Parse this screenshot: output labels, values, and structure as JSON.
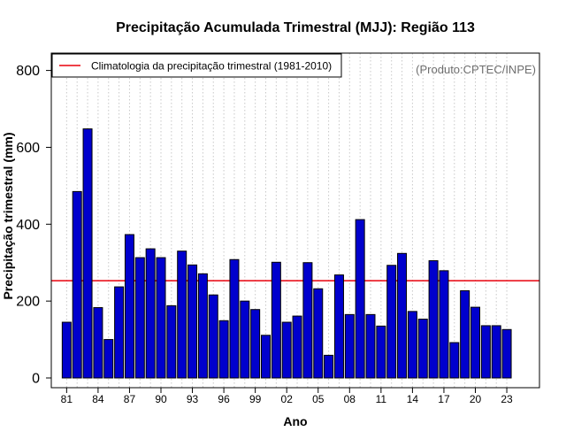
{
  "chart_data": {
    "type": "bar",
    "title": "Precipitação Acumulada Trimestral (MJJ): Região 113",
    "xlabel": "Ano",
    "ylabel": "Precipitação trimestral (mm)",
    "source_note": "(Produto:CPTEC/INPE)",
    "ylim": [
      0,
      850
    ],
    "yticks": [
      0,
      200,
      400,
      600,
      800
    ],
    "x_tick_labels": [
      "81",
      "84",
      "87",
      "90",
      "93",
      "96",
      "99",
      "02",
      "05",
      "08",
      "11",
      "14",
      "17",
      "20",
      "23"
    ],
    "categories": [
      "1981",
      "1982",
      "1983",
      "1984",
      "1985",
      "1986",
      "1987",
      "1988",
      "1989",
      "1990",
      "1991",
      "1992",
      "1993",
      "1994",
      "1995",
      "1996",
      "1997",
      "1998",
      "1999",
      "2000",
      "2001",
      "2002",
      "2003",
      "2004",
      "2005",
      "2006",
      "2007",
      "2008",
      "2009",
      "2010",
      "2011",
      "2012",
      "2013",
      "2014",
      "2015",
      "2016",
      "2017",
      "2018",
      "2019",
      "2020",
      "2021",
      "2022",
      "2023"
    ],
    "values": [
      145,
      485,
      648,
      183,
      100,
      237,
      373,
      313,
      336,
      313,
      188,
      330,
      294,
      271,
      216,
      149,
      308,
      200,
      178,
      111,
      301,
      145,
      161,
      300,
      232,
      59,
      268,
      165,
      412,
      165,
      135,
      293,
      324,
      173,
      153,
      305,
      279,
      92,
      227,
      184,
      136,
      136,
      126
    ],
    "climatology": 253,
    "legend": {
      "label": "Climatologia da precipitação trimestral (1981-2010)",
      "position": "top-left"
    },
    "colors": {
      "bar_fill": "#0000cd",
      "bar_stroke": "#000000",
      "climatology_line": "#e8000b",
      "grid": "#c8c8c8",
      "source_note": "#6e6e6e"
    },
    "grid": true
  }
}
